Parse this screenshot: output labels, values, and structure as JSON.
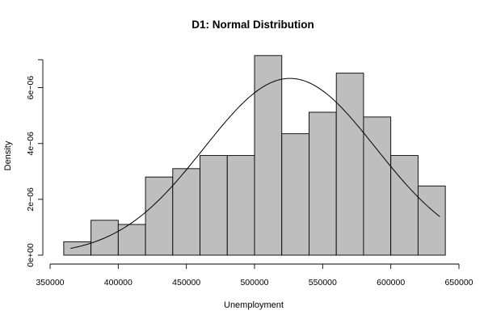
{
  "chart_data": {
    "type": "bar",
    "title": "D1: Normal Distribution",
    "xlabel": "Unemployment",
    "ylabel": "Density",
    "bins": [
      {
        "from": 360000,
        "to": 380000,
        "density": 4.8e-07
      },
      {
        "from": 380000,
        "to": 400000,
        "density": 1.25e-06
      },
      {
        "from": 400000,
        "to": 420000,
        "density": 1.1e-06
      },
      {
        "from": 420000,
        "to": 440000,
        "density": 2.8e-06
      },
      {
        "from": 440000,
        "to": 460000,
        "density": 3.1e-06
      },
      {
        "from": 460000,
        "to": 480000,
        "density": 3.57e-06
      },
      {
        "from": 480000,
        "to": 500000,
        "density": 3.57e-06
      },
      {
        "from": 500000,
        "to": 520000,
        "density": 7.15e-06
      },
      {
        "from": 520000,
        "to": 540000,
        "density": 4.35e-06
      },
      {
        "from": 540000,
        "to": 560000,
        "density": 5.12e-06
      },
      {
        "from": 560000,
        "to": 580000,
        "density": 6.52e-06
      },
      {
        "from": 580000,
        "to": 600000,
        "density": 4.95e-06
      },
      {
        "from": 600000,
        "to": 620000,
        "density": 3.57e-06
      },
      {
        "from": 620000,
        "to": 640000,
        "density": 2.48e-06
      }
    ],
    "normal_curve": {
      "mean": 526000,
      "sd": 63000,
      "x_from": 365000,
      "x_to": 636000
    },
    "xlim": [
      350000,
      650000
    ],
    "ylim": [
      0,
      7e-06
    ],
    "x_ticks": [
      350000,
      400000,
      450000,
      500000,
      550000,
      600000,
      650000
    ],
    "x_tick_labels": [
      "350000",
      "400000",
      "450000",
      "500000",
      "550000",
      "600000",
      "650000"
    ],
    "y_ticks": [
      0,
      2e-06,
      4e-06,
      6e-06
    ],
    "y_tick_labels": [
      "0e+00",
      "2e−06",
      "4e−06",
      "6e−06"
    ],
    "grid": false,
    "legend": "none",
    "colors": {
      "bar_fill": "#bebebe",
      "bar_stroke": "#000000",
      "curve": "#000000"
    }
  }
}
